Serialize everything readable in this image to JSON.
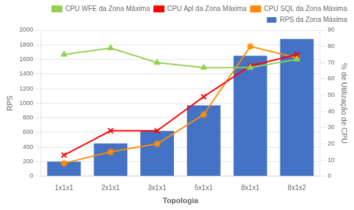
{
  "chart_data": {
    "type": "bar",
    "categories": [
      "1x1x1",
      "2x1x1",
      "3x1x1",
      "5x1x1",
      "8x1x1",
      "8x1x2"
    ],
    "series": [
      {
        "name": "RPS da Zona Máxima",
        "type": "bar",
        "color": "#4472C4",
        "values": [
          200,
          450,
          620,
          970,
          1650,
          1880
        ]
      },
      {
        "name": "CPU WFE da Zona Máxima",
        "type": "line",
        "color": "#92D050",
        "marker": "triangle",
        "axis": "y2",
        "values": [
          75,
          79,
          70,
          67,
          67,
          72
        ]
      },
      {
        "name": "CPU Apl da Zona Máxima",
        "type": "line",
        "color": "#FF0000",
        "marker": "x",
        "axis": "y2",
        "values": [
          13,
          28,
          28,
          49,
          68,
          75
        ]
      },
      {
        "name": "CPU SQL da Zona Máxima",
        "type": "line",
        "color": "#FF8C00",
        "marker": "star",
        "axis": "y2",
        "values": [
          8,
          15,
          20,
          38,
          80,
          73
        ]
      }
    ],
    "xlabel": "Topologia",
    "ylabel": "RPS",
    "y2label": "% de Utilização de CPU",
    "ylim": [
      0,
      2000
    ],
    "yticks": [
      0,
      200,
      400,
      600,
      800,
      1000,
      1200,
      1400,
      1600,
      1800,
      2000
    ],
    "y2lim": [
      0,
      90
    ],
    "y2ticks": [
      0,
      10,
      20,
      30,
      40,
      50,
      60,
      70,
      80,
      90
    ],
    "grid": true,
    "legend": "upper right"
  }
}
